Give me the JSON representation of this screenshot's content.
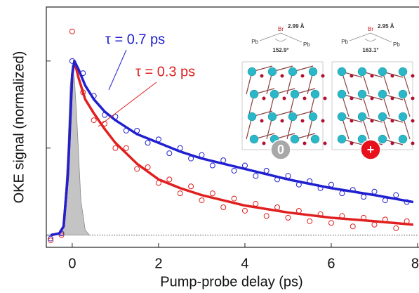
{
  "chart_data": {
    "type": "scatter",
    "xlabel": "Pump-probe delay (ps)",
    "ylabel": "OKE signal (normalized)",
    "xlim": [
      -0.6,
      8
    ],
    "ylim": [
      -0.07,
      1.31
    ],
    "xticks": [
      0,
      2,
      4,
      6,
      8
    ],
    "yticks": [
      0,
      0.5,
      1
    ],
    "series": [
      {
        "kind": "area",
        "color": "#c4c4c4",
        "x": [
          -0.3,
          -0.2,
          -0.1,
          -0.05,
          0,
          0.05,
          0.1,
          0.2,
          0.3,
          0.4
        ],
        "values": [
          0,
          0.05,
          0.5,
          0.85,
          0.98,
          0.9,
          0.7,
          0.2,
          0.03,
          0
        ]
      },
      {
        "kind": "points",
        "color": "#2020d0",
        "x": [
          -0.5,
          -0.25,
          0,
          0.25,
          0.5,
          0.75,
          1,
          1.25,
          1.5,
          1.75,
          2,
          2.25,
          2.5,
          2.75,
          3,
          3.25,
          3.5,
          3.75,
          4,
          4.25,
          4.5,
          4.75,
          5,
          5.25,
          5.5,
          5.75,
          6,
          6.25,
          6.5,
          6.75,
          7,
          7.25,
          7.5,
          7.75
        ],
        "values": [
          -0.02,
          0.01,
          1.0,
          0.93,
          0.8,
          0.69,
          0.68,
          0.6,
          0.6,
          0.53,
          0.55,
          0.47,
          0.5,
          0.44,
          0.46,
          0.4,
          0.43,
          0.37,
          0.4,
          0.34,
          0.37,
          0.32,
          0.34,
          0.29,
          0.31,
          0.27,
          0.29,
          0.24,
          0.26,
          0.22,
          0.25,
          0.2,
          0.23,
          0.19
        ]
      },
      {
        "kind": "points",
        "color": "#e02020",
        "x": [
          -0.5,
          -0.25,
          0,
          0.25,
          0.5,
          0.75,
          1,
          1.25,
          1.5,
          1.75,
          2,
          2.25,
          2.5,
          2.75,
          3,
          3.25,
          3.5,
          3.75,
          4,
          4.25,
          4.5,
          4.75,
          5,
          5.25,
          5.5,
          5.75,
          6,
          6.25,
          6.5,
          6.75,
          7,
          7.25,
          7.5,
          7.75
        ],
        "values": [
          -0.03,
          0.0,
          1.17,
          0.82,
          0.66,
          0.64,
          0.5,
          0.5,
          0.38,
          0.39,
          0.3,
          0.32,
          0.24,
          0.28,
          0.2,
          0.24,
          0.16,
          0.21,
          0.14,
          0.18,
          0.11,
          0.16,
          0.1,
          0.14,
          0.08,
          0.12,
          0.07,
          0.11,
          0.05,
          0.1,
          0.06,
          0.09,
          0.04,
          0.08
        ]
      },
      {
        "kind": "line",
        "color": "#e02020",
        "x": [
          -0.5,
          -0.3,
          -0.2,
          -0.1,
          0,
          0.05,
          0.15,
          0.3,
          0.5,
          0.75,
          1,
          1.5,
          2,
          2.5,
          3,
          4,
          5,
          6,
          7,
          7.9
        ],
        "values": [
          0,
          0.01,
          0.05,
          0.35,
          0.92,
          1.0,
          0.9,
          0.78,
          0.7,
          0.61,
          0.53,
          0.41,
          0.32,
          0.27,
          0.23,
          0.17,
          0.13,
          0.1,
          0.08,
          0.06
        ]
      },
      {
        "kind": "line",
        "color": "#2020d0",
        "x": [
          -0.5,
          -0.3,
          -0.2,
          -0.1,
          0,
          0.05,
          0.15,
          0.3,
          0.5,
          0.75,
          1,
          1.5,
          2,
          2.5,
          3,
          4,
          5,
          6,
          7,
          7.9
        ],
        "values": [
          0,
          0.01,
          0.05,
          0.35,
          0.92,
          1.0,
          0.95,
          0.86,
          0.78,
          0.71,
          0.66,
          0.58,
          0.53,
          0.48,
          0.44,
          0.38,
          0.32,
          0.27,
          0.23,
          0.19
        ]
      }
    ],
    "annotations": [
      {
        "text": "τ = 0.7 ps",
        "color": "#2020d0"
      },
      {
        "text": "τ = 0.3 ps",
        "color": "#e02020"
      }
    ],
    "inset": [
      {
        "br": "Br",
        "distance": "2.99 Å",
        "pb_left": "Pb",
        "pb_right": "Pb",
        "angle": "152.9°",
        "charge": "0",
        "charge_color": "#a8a8a8"
      },
      {
        "br": "Br",
        "distance": "2.95 Å",
        "pb_left": "Pb",
        "pb_right": "Pb",
        "angle": "163.1°",
        "charge": "+",
        "charge_color": "#e8101a"
      }
    ]
  }
}
